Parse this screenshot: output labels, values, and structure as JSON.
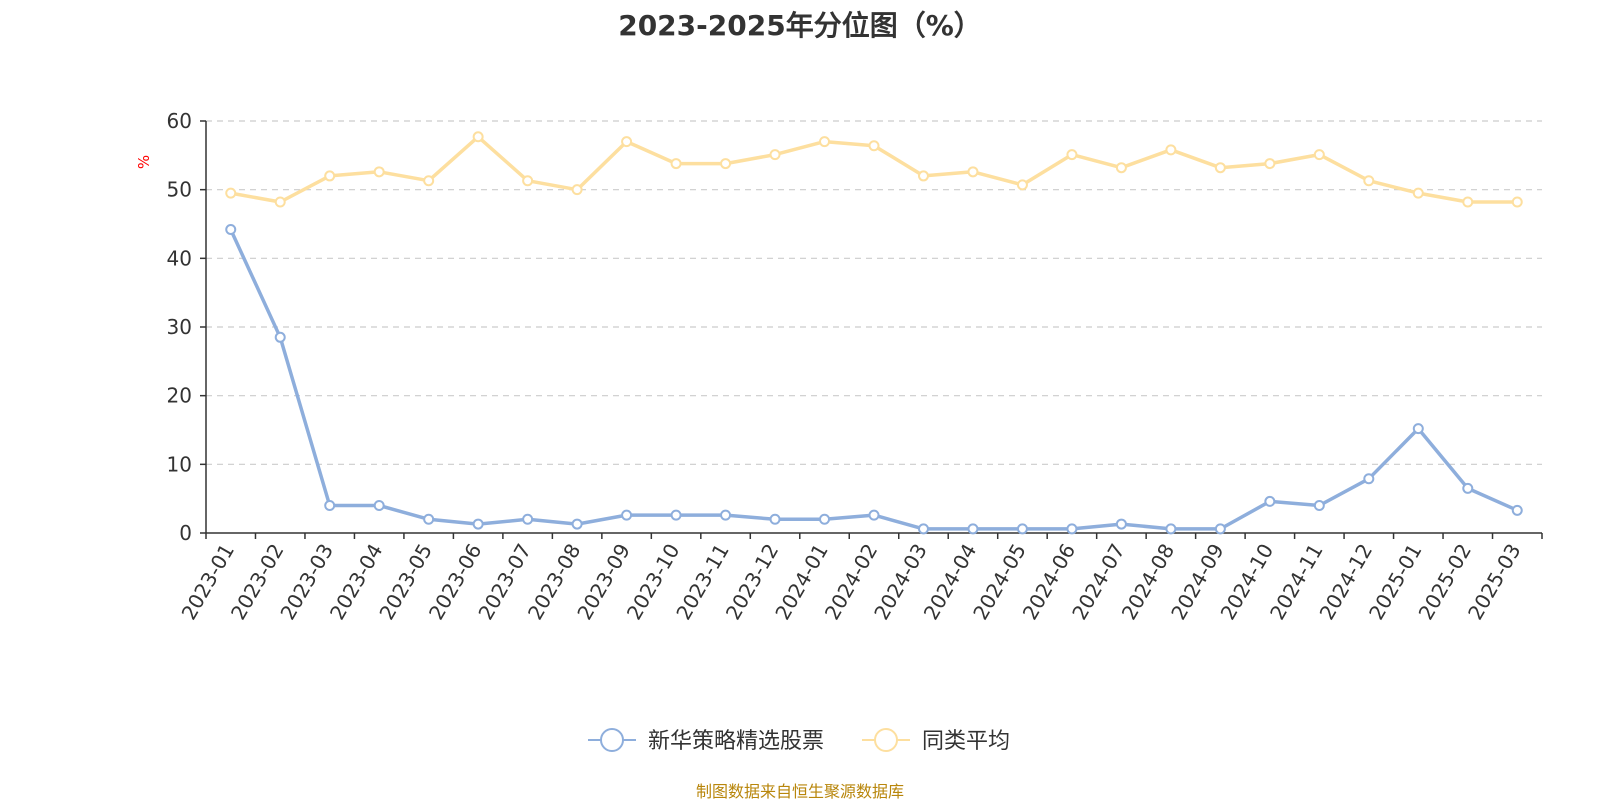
{
  "chart_data": {
    "type": "line",
    "title": "2023-2025年分位图（%）",
    "ylabel": "%",
    "xlabel": "",
    "ylim": [
      0,
      60
    ],
    "yticks": [
      0,
      10,
      20,
      30,
      40,
      50,
      60
    ],
    "grid": true,
    "legend_position": "bottom-center",
    "x": [
      "2023-01",
      "2023-02",
      "2023-03",
      "2023-04",
      "2023-05",
      "2023-06",
      "2023-07",
      "2023-08",
      "2023-09",
      "2023-10",
      "2023-11",
      "2023-12",
      "2024-01",
      "2024-02",
      "2024-03",
      "2024-04",
      "2024-05",
      "2024-06",
      "2024-07",
      "2024-08",
      "2024-09",
      "2024-10",
      "2024-11",
      "2024-12",
      "2025-01",
      "2025-02",
      "2025-03"
    ],
    "series": [
      {
        "name": "新华策略精选股票",
        "color": "#8eaedc",
        "values": [
          44.2,
          28.5,
          4.0,
          4.0,
          2.0,
          1.3,
          2.0,
          1.3,
          2.6,
          2.6,
          2.6,
          2.0,
          2.0,
          2.6,
          0.6,
          0.6,
          0.6,
          0.6,
          1.3,
          0.6,
          0.6,
          4.6,
          4.0,
          7.9,
          15.2,
          6.5,
          3.3
        ]
      },
      {
        "name": "同类平均",
        "color": "#fddf9f",
        "values": [
          49.5,
          48.2,
          52.0,
          52.6,
          51.3,
          57.7,
          51.3,
          50.0,
          57.0,
          53.8,
          53.8,
          55.1,
          57.0,
          56.4,
          52.0,
          52.6,
          50.7,
          55.1,
          53.2,
          55.8,
          53.2,
          53.8,
          55.1,
          51.3,
          49.5,
          48.2,
          48.2
        ]
      }
    ]
  },
  "source_note": "制图数据来自恒生聚源数据库",
  "colors": {
    "axis": "#333333",
    "grid": "#cccccc",
    "ylabel": "#ff0000",
    "source_note": "#b8860b"
  }
}
